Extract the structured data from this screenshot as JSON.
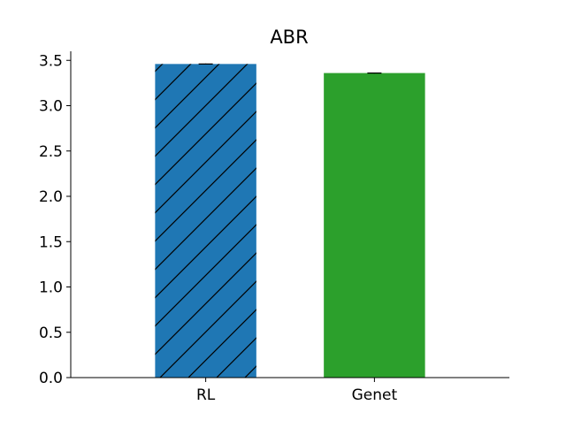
{
  "chart_data": {
    "type": "bar",
    "title": "ABR",
    "xlabel": "",
    "ylabel": "",
    "categories": [
      "RL",
      "Genet"
    ],
    "values": [
      3.46,
      3.36
    ],
    "errors": [
      0.005,
      0.005
    ],
    "colors": [
      "#1f77b4",
      "#2ca02c"
    ],
    "hatch": [
      "diagonal",
      "none"
    ],
    "ylim": [
      0,
      3.6
    ],
    "yticks": [
      "0.0",
      "0.5",
      "1.0",
      "1.5",
      "2.0",
      "2.5",
      "3.0",
      "3.5"
    ],
    "grid": false,
    "legend": "none"
  }
}
